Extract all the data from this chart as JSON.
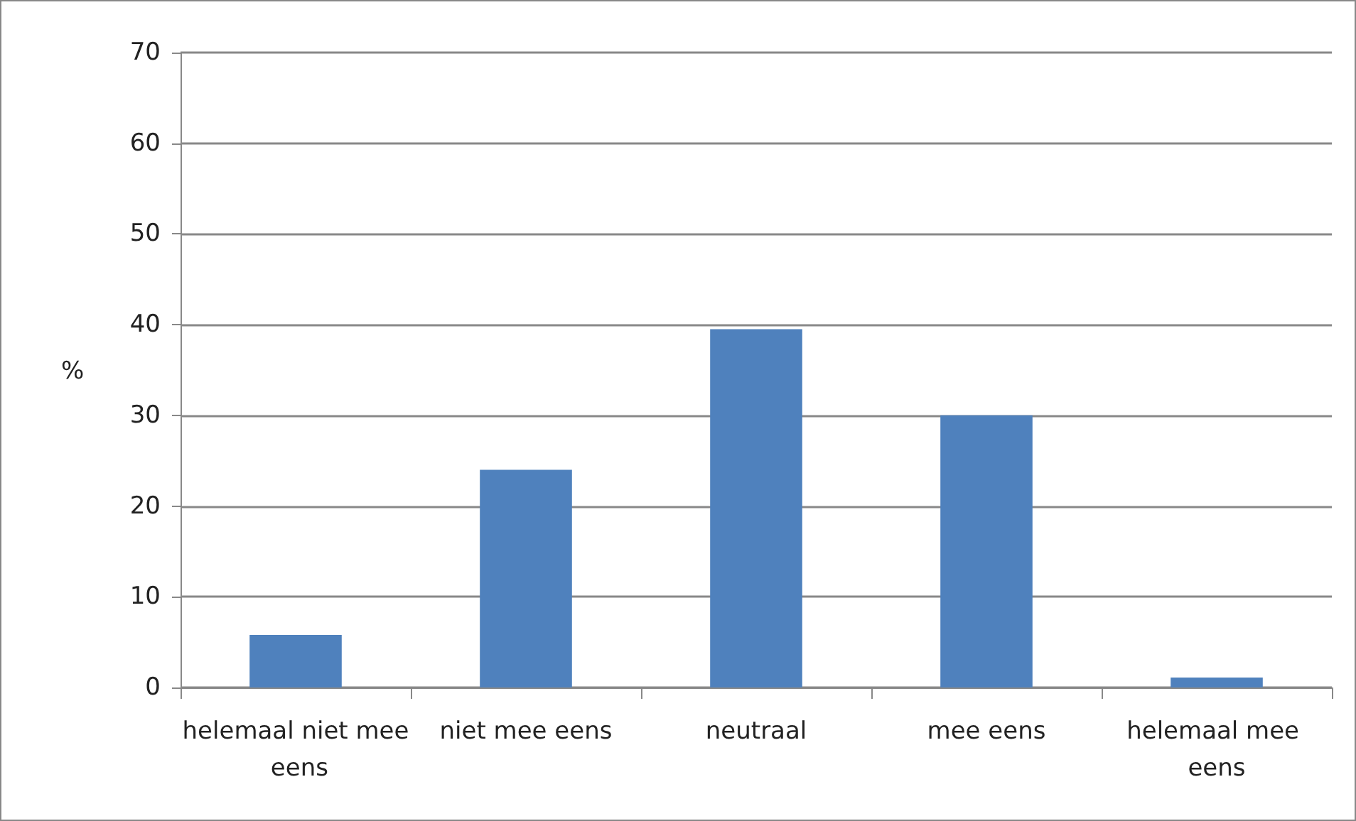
{
  "chart_data": {
    "type": "bar",
    "ylabel": "%",
    "categories": [
      "helemaal niet mee eens",
      "niet mee eens",
      "neutraal",
      "mee eens",
      "helemaal mee eens"
    ],
    "values": [
      5.8,
      24,
      39.5,
      30,
      1.1
    ],
    "color": "#4f81bd",
    "ylim": [
      0,
      70
    ],
    "yticks": [
      0,
      10,
      20,
      30,
      40,
      50,
      60,
      70
    ],
    "grid": "y"
  }
}
